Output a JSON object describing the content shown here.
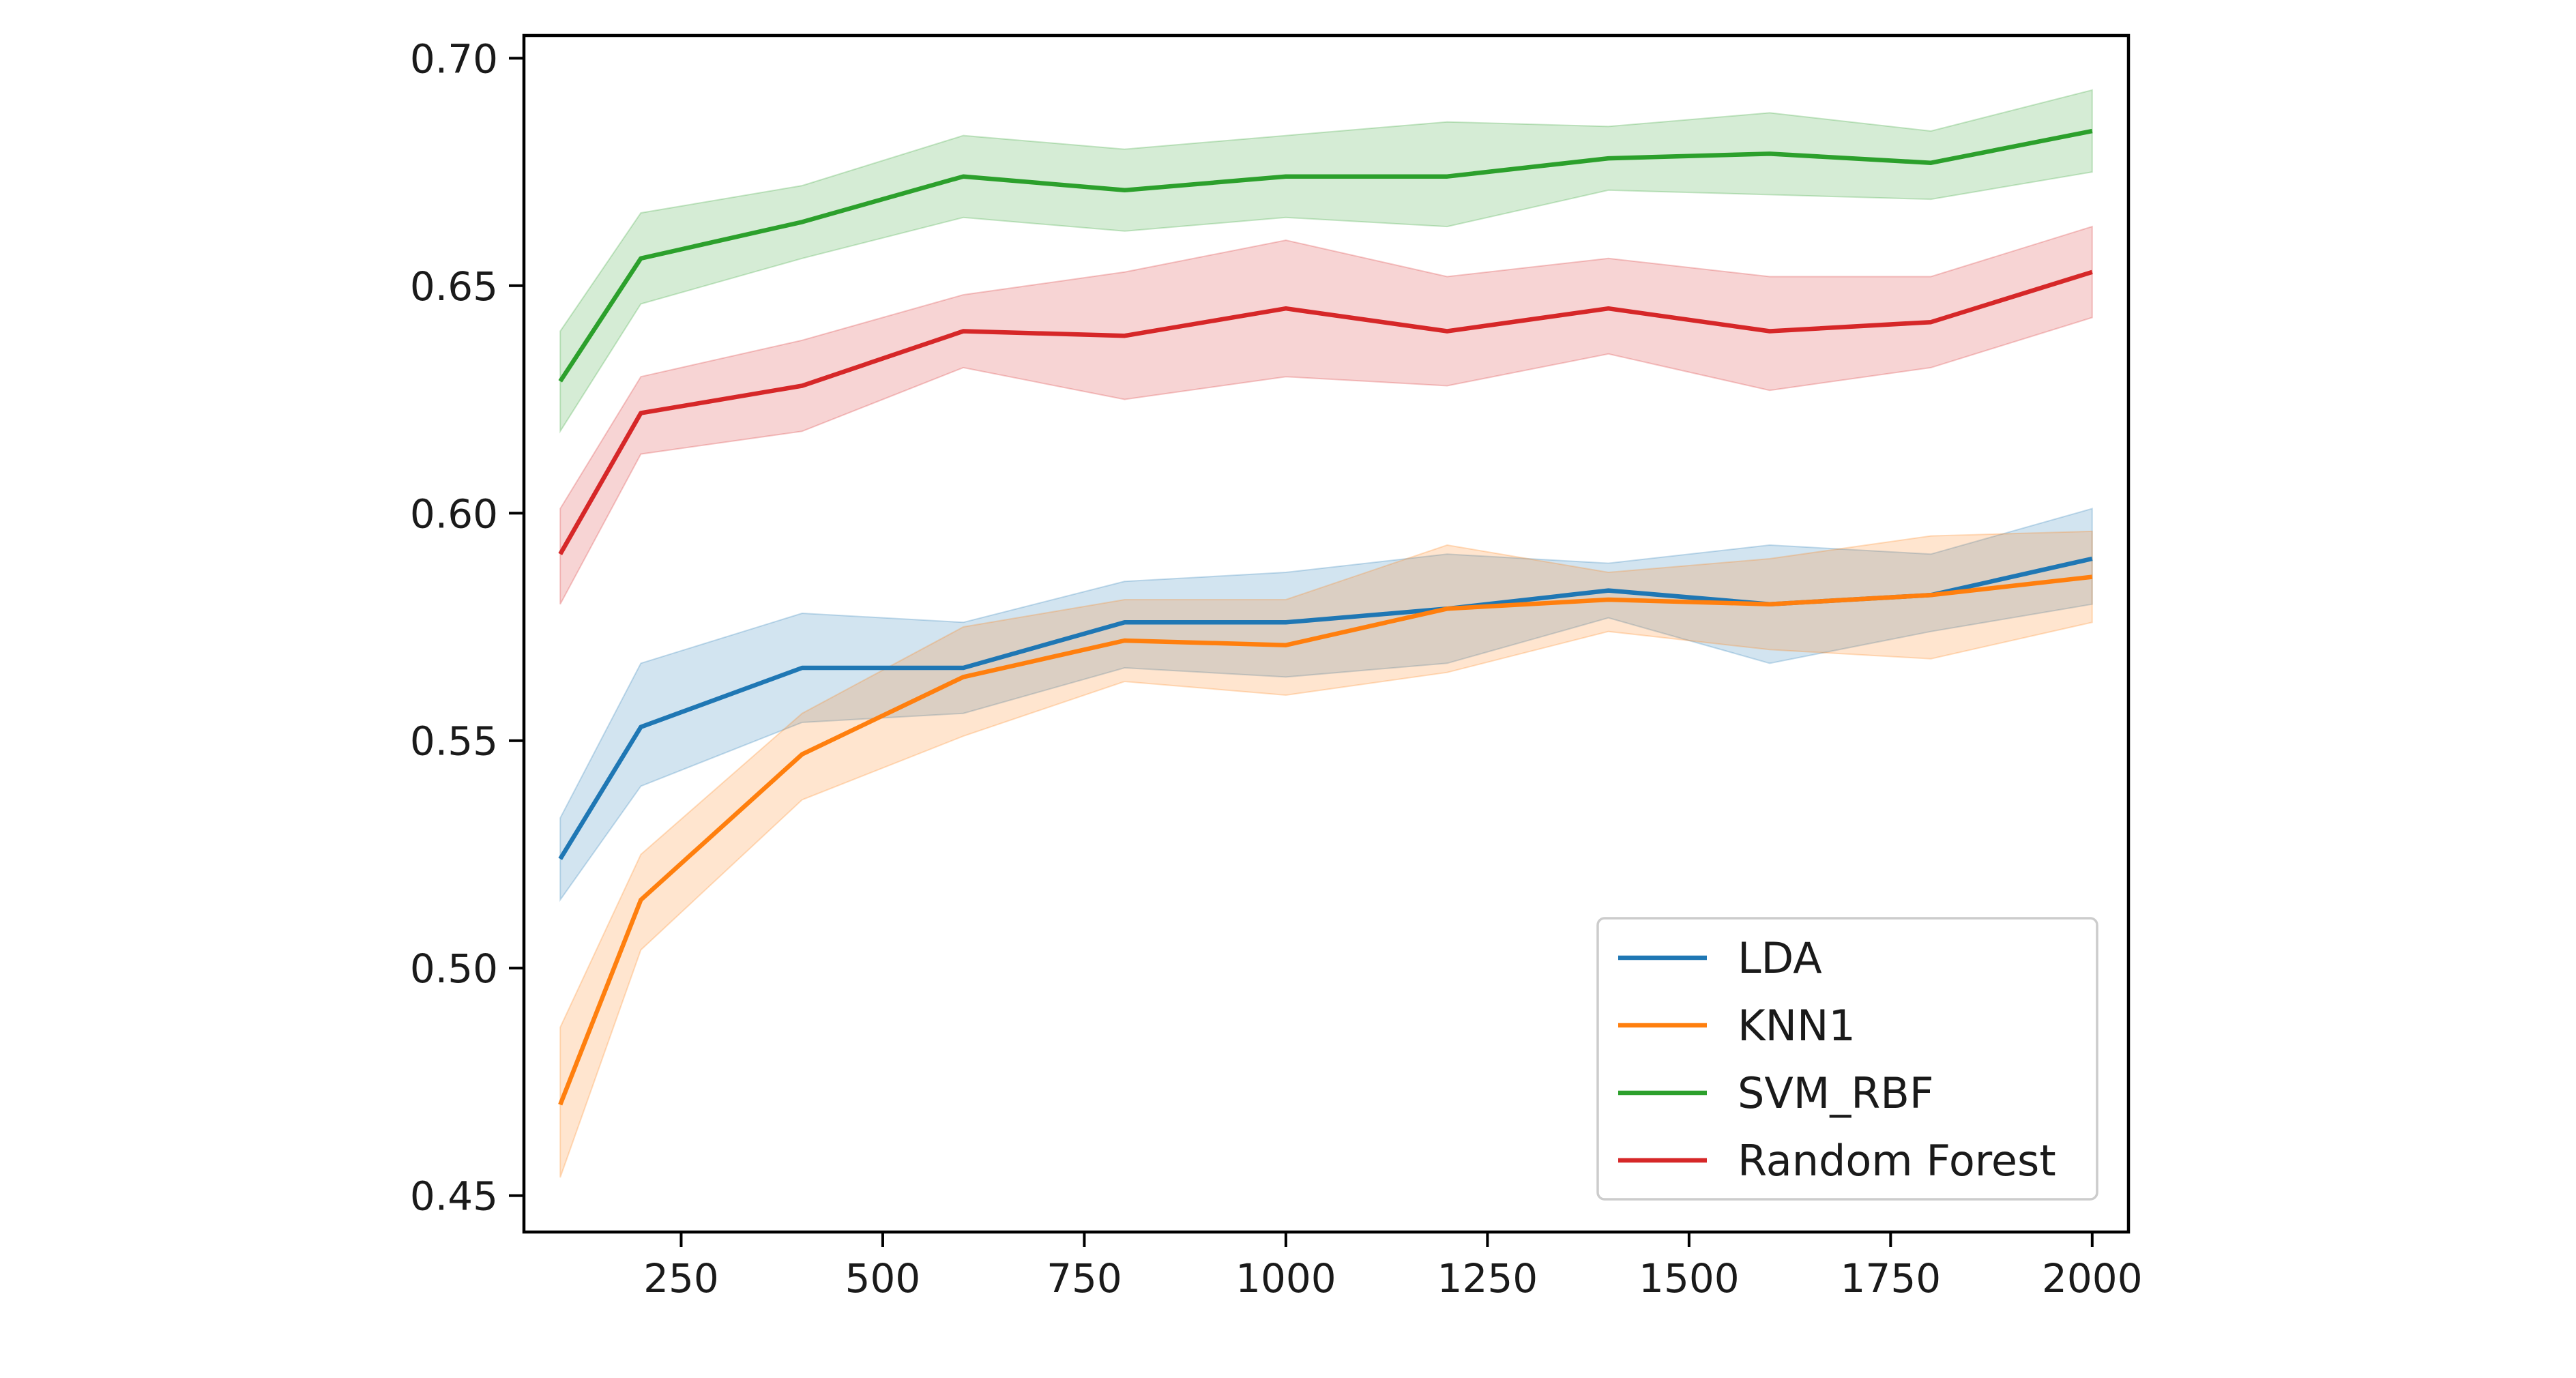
{
  "chart_data": {
    "type": "line",
    "title": "",
    "xlabel": "",
    "ylabel": "",
    "xlim": [
      55,
      2045
    ],
    "ylim": [
      0.442,
      0.705
    ],
    "x_ticks": [
      250,
      500,
      750,
      1000,
      1250,
      1500,
      1750,
      2000
    ],
    "x_tick_labels": [
      "250",
      "500",
      "750",
      "1000",
      "1250",
      "1500",
      "1750",
      "2000"
    ],
    "y_ticks": [
      0.45,
      0.5,
      0.55,
      0.6,
      0.65,
      0.7
    ],
    "y_tick_labels": [
      "0.45",
      "0.50",
      "0.55",
      "0.60",
      "0.65",
      "0.70"
    ],
    "grid": false,
    "legend_position": "lower-right",
    "x": [
      100,
      200,
      400,
      600,
      800,
      1000,
      1200,
      1400,
      1600,
      1800,
      2000
    ],
    "series": [
      {
        "name": "LDA",
        "color": "#1f77b4",
        "values": [
          0.524,
          0.553,
          0.566,
          0.566,
          0.576,
          0.576,
          0.579,
          0.583,
          0.58,
          0.582,
          0.59
        ],
        "lower": [
          0.515,
          0.54,
          0.554,
          0.556,
          0.566,
          0.564,
          0.567,
          0.577,
          0.567,
          0.574,
          0.58
        ],
        "upper": [
          0.533,
          0.567,
          0.578,
          0.576,
          0.585,
          0.587,
          0.591,
          0.589,
          0.593,
          0.591,
          0.601
        ]
      },
      {
        "name": "KNN1",
        "color": "#ff7f0e",
        "values": [
          0.47,
          0.515,
          0.547,
          0.564,
          0.572,
          0.571,
          0.579,
          0.581,
          0.58,
          0.582,
          0.586
        ],
        "lower": [
          0.454,
          0.504,
          0.537,
          0.551,
          0.563,
          0.56,
          0.565,
          0.574,
          0.57,
          0.568,
          0.576
        ],
        "upper": [
          0.487,
          0.525,
          0.556,
          0.575,
          0.581,
          0.581,
          0.593,
          0.587,
          0.59,
          0.595,
          0.596
        ]
      },
      {
        "name": "SVM_RBF",
        "color": "#2ca02c",
        "values": [
          0.629,
          0.656,
          0.664,
          0.674,
          0.671,
          0.674,
          0.674,
          0.678,
          0.679,
          0.677,
          0.684
        ],
        "lower": [
          0.618,
          0.646,
          0.656,
          0.665,
          0.662,
          0.665,
          0.663,
          0.671,
          0.67,
          0.669,
          0.675
        ],
        "upper": [
          0.64,
          0.666,
          0.672,
          0.683,
          0.68,
          0.683,
          0.686,
          0.685,
          0.688,
          0.684,
          0.693
        ]
      },
      {
        "name": "Random Forest",
        "color": "#d62728",
        "values": [
          0.591,
          0.622,
          0.628,
          0.64,
          0.639,
          0.645,
          0.64,
          0.645,
          0.64,
          0.642,
          0.653
        ],
        "lower": [
          0.58,
          0.613,
          0.618,
          0.632,
          0.625,
          0.63,
          0.628,
          0.635,
          0.627,
          0.632,
          0.643
        ],
        "upper": [
          0.601,
          0.63,
          0.638,
          0.648,
          0.653,
          0.66,
          0.652,
          0.656,
          0.652,
          0.652,
          0.663
        ]
      }
    ]
  }
}
